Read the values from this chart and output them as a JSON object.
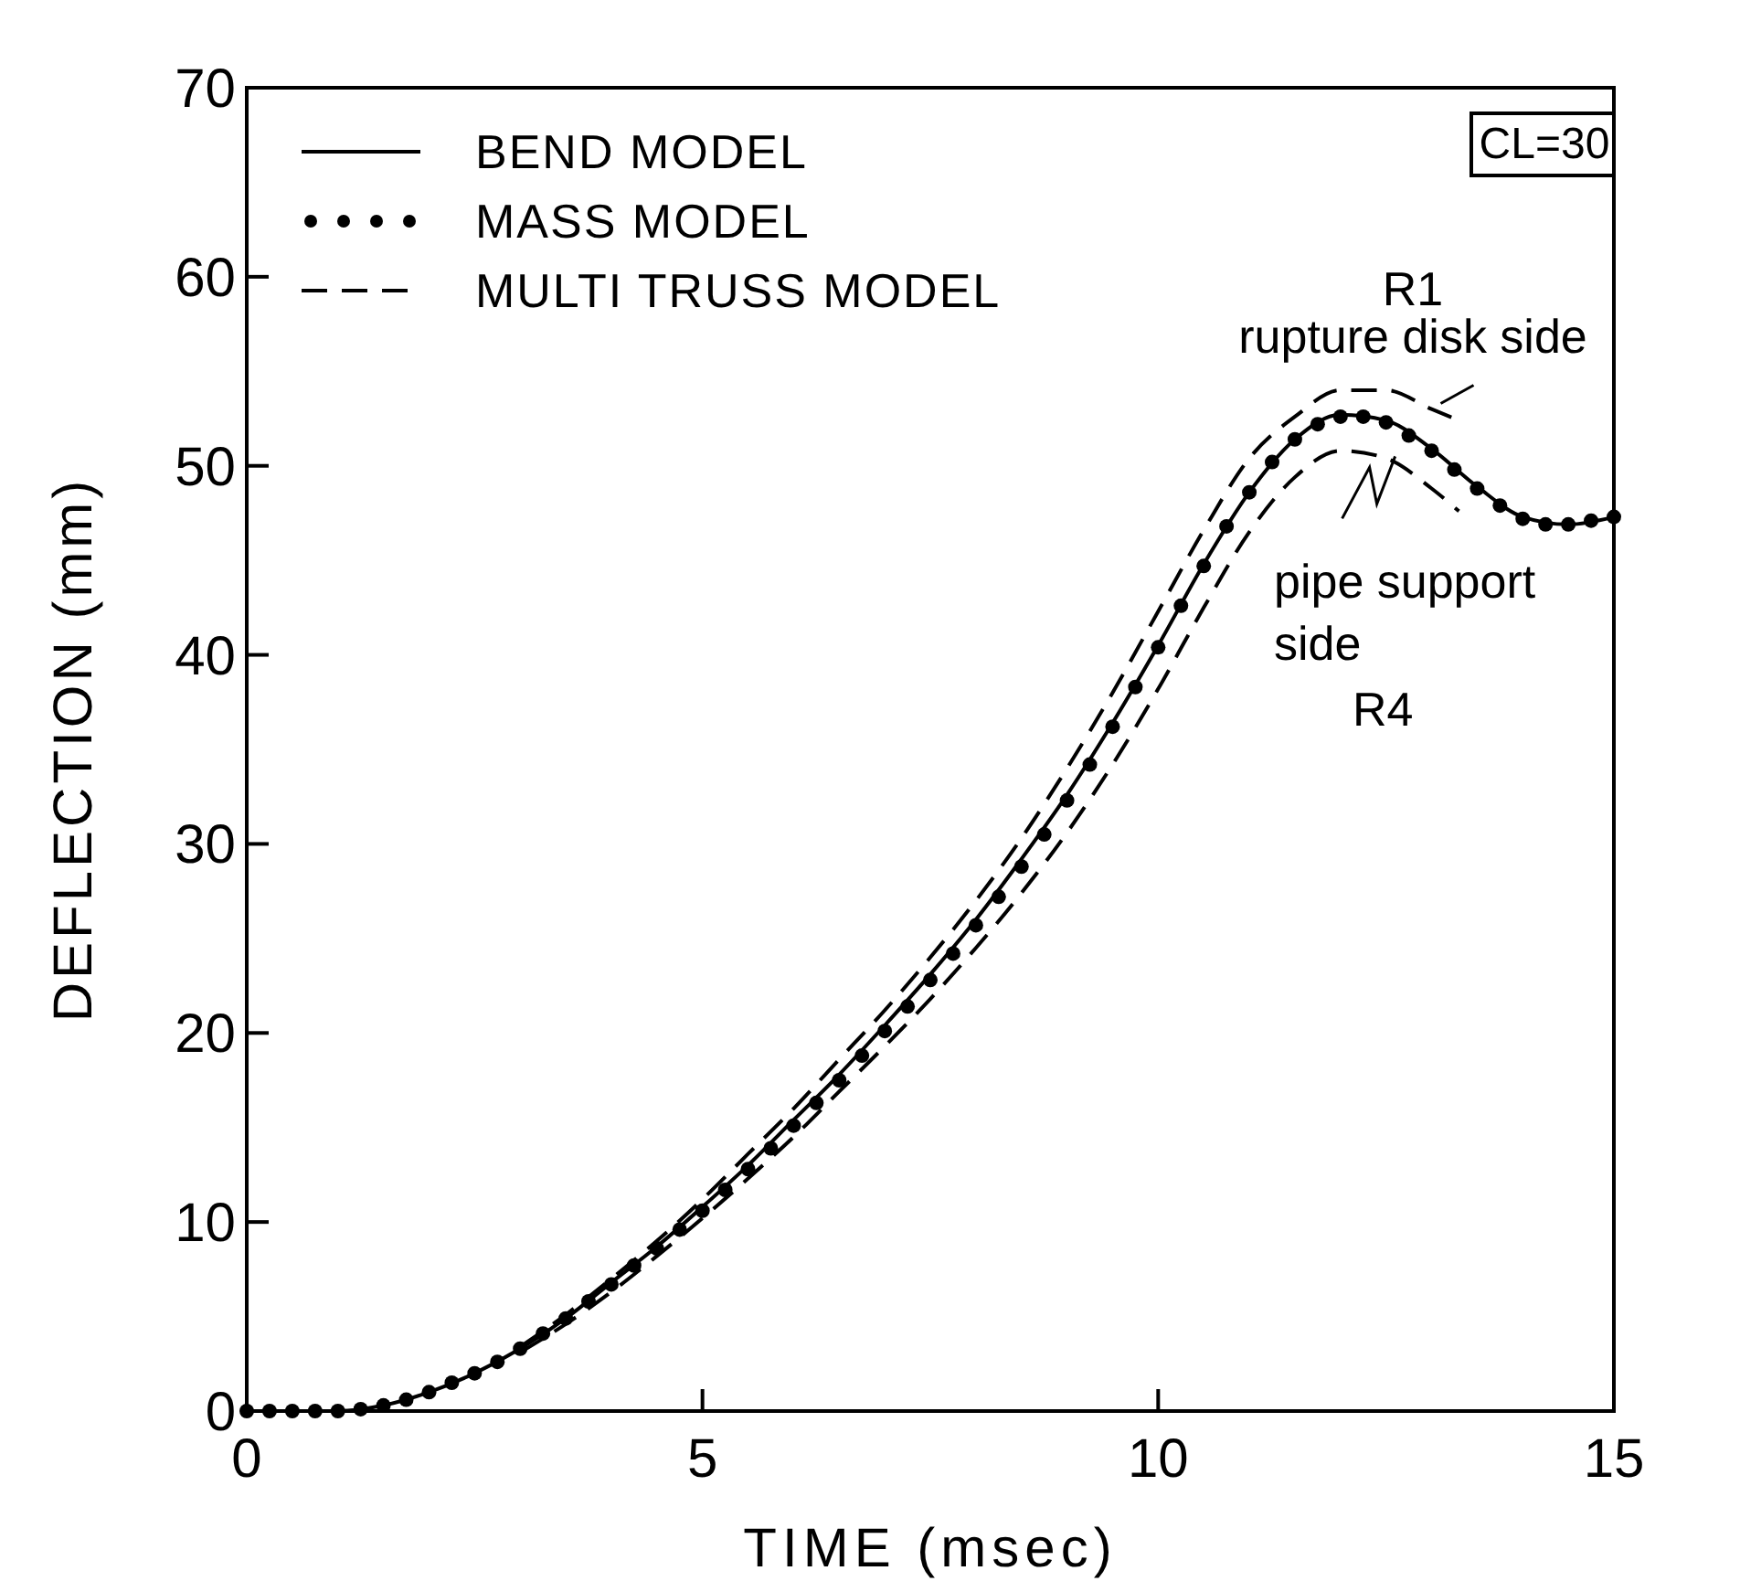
{
  "chart_data": {
    "type": "line",
    "xlabel": "TIME (msec)",
    "ylabel": "DEFLECTION (mm)",
    "xlim": [
      0,
      15
    ],
    "ylim": [
      0,
      70
    ],
    "xticks": [
      0,
      5,
      10,
      15
    ],
    "yticks": [
      0,
      10,
      20,
      30,
      40,
      50,
      60,
      70
    ],
    "grid": false,
    "legend": "top left",
    "series": [
      {
        "name": "BEND MODEL",
        "color": "#000000",
        "line_style": "solid",
        "x": [
          0,
          1,
          1.5,
          2,
          2.5,
          3,
          3.5,
          4,
          4.5,
          5,
          5.5,
          6,
          6.5,
          7,
          7.5,
          8,
          8.5,
          9,
          9.5,
          10,
          10.5,
          11,
          11.5,
          12,
          12.5,
          13,
          13.5,
          14,
          14.5,
          15
        ],
        "values": [
          0,
          0,
          0.3,
          1,
          2,
          3.3,
          4.9,
          6.8,
          8.7,
          10.8,
          13,
          15.4,
          17.8,
          20.4,
          23.1,
          26,
          29.2,
          32.6,
          36.4,
          40.5,
          44.8,
          48.6,
          51.4,
          52.7,
          52.4,
          50.9,
          48.9,
          47.3,
          46.9,
          47.3
        ]
      },
      {
        "name": "MASS MODEL",
        "type": "scatter",
        "color": "#000000",
        "marker": "circle",
        "x": [
          0,
          0.25,
          0.5,
          0.75,
          1,
          1.25,
          1.5,
          1.75,
          2,
          2.25,
          2.5,
          2.75,
          3,
          3.25,
          3.5,
          3.75,
          4,
          4.25,
          4.5,
          4.75,
          5,
          5.25,
          5.5,
          5.75,
          6,
          6.25,
          6.5,
          6.75,
          7,
          7.25,
          7.5,
          7.75,
          8,
          8.25,
          8.5,
          8.75,
          9,
          9.25,
          9.5,
          9.75,
          10,
          10.25,
          10.5,
          10.75,
          11,
          11.25,
          11.5,
          11.75,
          12,
          12.25,
          12.5,
          12.75,
          13,
          13.25,
          13.5,
          13.75,
          14,
          14.25,
          14.5,
          14.75,
          15
        ],
        "values": [
          0,
          0,
          0,
          0,
          0,
          0.1,
          0.3,
          0.6,
          1,
          1.5,
          2,
          2.6,
          3.3,
          4.1,
          4.9,
          5.8,
          6.7,
          7.7,
          8.6,
          9.6,
          10.6,
          11.7,
          12.8,
          13.9,
          15.1,
          16.3,
          17.5,
          18.8,
          20.1,
          21.4,
          22.8,
          24.2,
          25.7,
          27.2,
          28.8,
          30.5,
          32.3,
          34.2,
          36.2,
          38.3,
          40.4,
          42.6,
          44.7,
          46.8,
          48.6,
          50.2,
          51.4,
          52.2,
          52.6,
          52.6,
          52.3,
          51.6,
          50.8,
          49.8,
          48.8,
          47.9,
          47.2,
          46.9,
          46.9,
          47.1,
          47.3
        ]
      },
      {
        "name": "MULTI TRUSS MODEL",
        "color": "#000000",
        "line_style": "dashed",
        "x": [
          3,
          3.5,
          4,
          4.5,
          5,
          5.5,
          6,
          6.5,
          7,
          7.5,
          8,
          8.5,
          9,
          9.5,
          10,
          10.5,
          11,
          11.5,
          12,
          12.5,
          13,
          13.3
        ],
        "values": [
          3.4,
          5.1,
          7,
          9,
          11.2,
          13.6,
          16,
          18.6,
          21.2,
          24,
          27,
          30.3,
          34,
          38,
          42.3,
          46.6,
          50.4,
          52.6,
          54,
          54,
          53,
          52.4
        ]
      },
      {
        "color": "#000000",
        "line_style": "dashed",
        "x": [
          3,
          3.5,
          4,
          4.5,
          5,
          5.5,
          6,
          6.5,
          7,
          7.5,
          8,
          8.5,
          9,
          9.5,
          10,
          10.5,
          11,
          11.5,
          12,
          12.5,
          13,
          13.3
        ],
        "values": [
          3.1,
          4.6,
          6.3,
          8.2,
          10.2,
          12.3,
          14.5,
          16.9,
          19.3,
          21.8,
          24.5,
          27.4,
          30.6,
          34.2,
          38.2,
          42.5,
          46.5,
          49.4,
          50.8,
          50.4,
          48.8,
          47.6
        ]
      }
    ],
    "annotations": [
      "CL=30",
      "R1",
      {
        "text": "rupture disk side",
        "x": 13.1,
        "y": 53.3
      },
      {
        "text": "pipe support",
        "x": 12.6,
        "y": 50.5
      },
      "side",
      "R4"
    ]
  }
}
